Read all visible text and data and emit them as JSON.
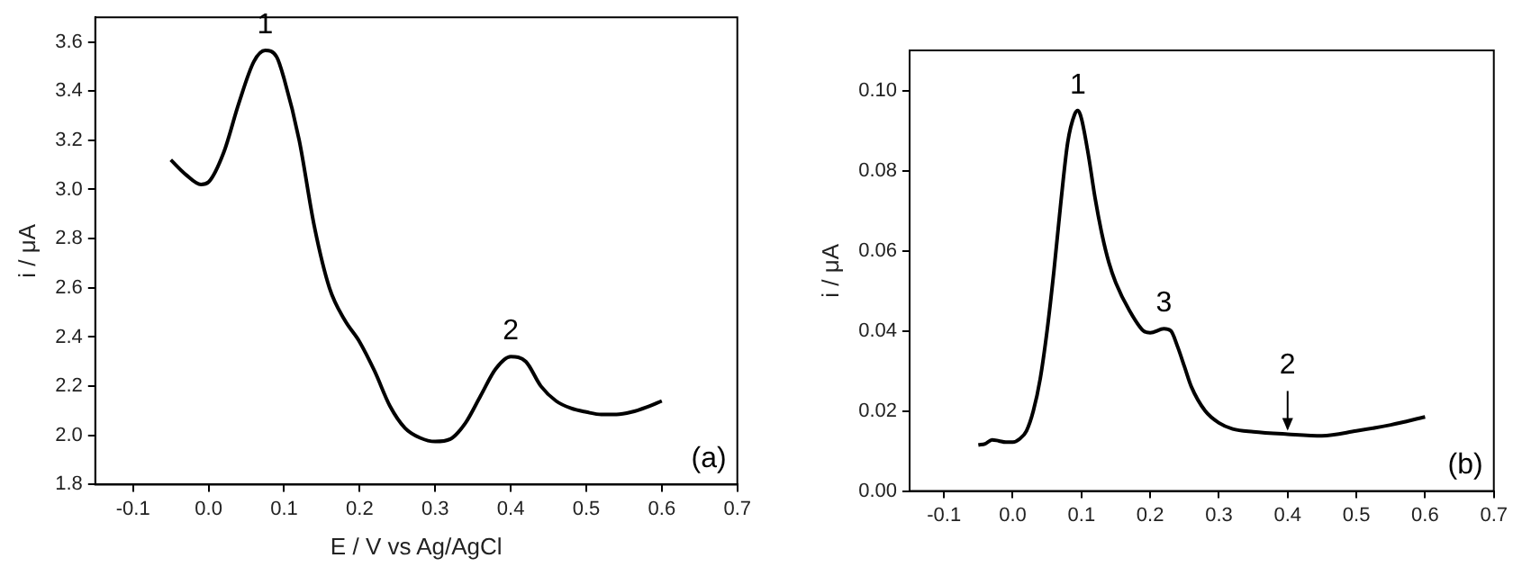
{
  "chart_data": [
    {
      "type": "line",
      "xlabel": "E / V vs Ag/AgCl",
      "ylabel": "i / μA",
      "xlim": [
        -0.15,
        0.7
      ],
      "ylim": [
        1.8,
        3.7
      ],
      "xticks": [
        -0.1,
        {
          "value": 0,
          "label": "0.0"
        },
        0.1,
        0.2,
        0.3,
        0.4,
        0.5,
        0.6,
        0.7
      ],
      "yticks": [
        1.8,
        {
          "value": 2,
          "label": "2.0"
        },
        2.2,
        2.4,
        2.6,
        2.8,
        {
          "value": 3,
          "label": "3.0"
        },
        3.2,
        3.4,
        3.6
      ],
      "series": [
        {
          "color": "#000000",
          "x": [
            -0.05,
            -0.03,
            -0.01,
            0.0,
            0.02,
            0.04,
            0.06,
            0.075,
            0.09,
            0.1,
            0.12,
            0.14,
            0.16,
            0.18,
            0.2,
            0.22,
            0.24,
            0.26,
            0.28,
            0.3,
            0.32,
            0.34,
            0.36,
            0.38,
            0.4,
            0.42,
            0.44,
            0.46,
            0.48,
            0.5,
            0.52,
            0.54,
            0.56,
            0.58,
            0.6
          ],
          "values": [
            3.12,
            3.06,
            3.02,
            3.03,
            3.15,
            3.35,
            3.52,
            3.565,
            3.54,
            3.45,
            3.2,
            2.85,
            2.6,
            2.47,
            2.38,
            2.26,
            2.12,
            2.03,
            1.99,
            1.975,
            1.985,
            2.05,
            2.16,
            2.27,
            2.32,
            2.3,
            2.2,
            2.14,
            2.11,
            2.095,
            2.085,
            2.085,
            2.095,
            2.115,
            2.14
          ]
        }
      ],
      "annotations": [
        {
          "text": "1",
          "x": 0.075,
          "y": 3.565
        },
        {
          "text": "2",
          "x": 0.4,
          "y": 2.32
        },
        "(a)"
      ]
    },
    {
      "type": "line",
      "ylabel": "i / μA",
      "xlim": [
        -0.15,
        0.7
      ],
      "ylim": [
        0,
        0.11
      ],
      "xticks": [
        -0.1,
        {
          "value": 0,
          "label": "0.0"
        },
        0.1,
        0.2,
        0.3,
        0.4,
        0.5,
        0.6,
        0.7
      ],
      "yticks": [
        {
          "value": 0,
          "label": "0.00"
        },
        0.02,
        0.04,
        0.06,
        0.08,
        {
          "value": 0.1,
          "label": "0.10"
        }
      ],
      "series": [
        {
          "color": "#000000",
          "x": [
            -0.05,
            -0.04,
            -0.03,
            -0.02,
            -0.01,
            0.0,
            0.01,
            0.02,
            0.03,
            0.04,
            0.05,
            0.06,
            0.07,
            0.08,
            0.09,
            0.095,
            0.1,
            0.11,
            0.12,
            0.13,
            0.14,
            0.15,
            0.17,
            0.19,
            0.2,
            0.22,
            0.23,
            0.24,
            0.25,
            0.26,
            0.28,
            0.3,
            0.32,
            0.35,
            0.4,
            0.45,
            0.5,
            0.55,
            0.6
          ],
          "values": [
            0.0115,
            0.0118,
            0.0128,
            0.0125,
            0.0122,
            0.0122,
            0.013,
            0.015,
            0.02,
            0.028,
            0.04,
            0.055,
            0.072,
            0.087,
            0.094,
            0.095,
            0.093,
            0.084,
            0.073,
            0.064,
            0.057,
            0.052,
            0.045,
            0.04,
            0.0395,
            0.0405,
            0.04,
            0.036,
            0.031,
            0.026,
            0.02,
            0.017,
            0.0155,
            0.0148,
            0.0142,
            0.0138,
            0.015,
            0.0165,
            0.0185
          ]
        }
      ],
      "annotations": [
        {
          "text": "1",
          "x": 0.095,
          "y": 0.095
        },
        {
          "text": "3",
          "x": 0.22,
          "y": 0.0405
        },
        {
          "text": "2",
          "x": 0.4,
          "y": 0.0142
        },
        "(b)"
      ]
    }
  ]
}
